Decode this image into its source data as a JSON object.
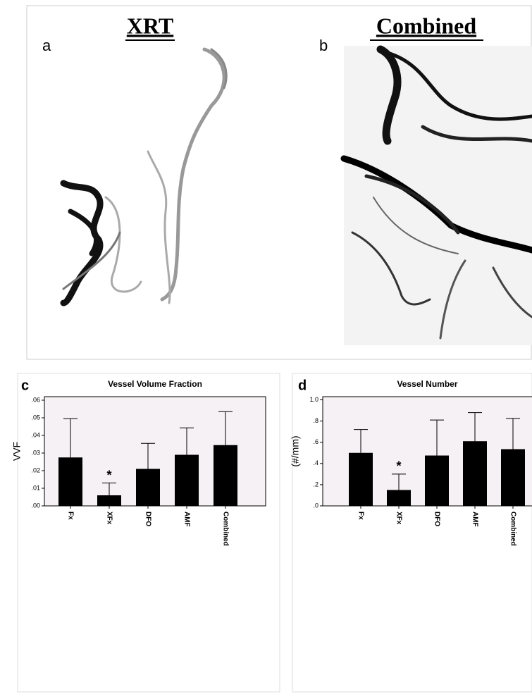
{
  "panels": [
    {
      "letter": "a",
      "title": "XRT"
    },
    {
      "letter": "b",
      "title": "Combined"
    }
  ],
  "chart_data": [
    {
      "type": "bar",
      "letter": "c",
      "title": "Vessel Volume Fraction",
      "y_label": "VVF",
      "categories": [
        "Fx",
        "XFx",
        "DFO",
        "AMF",
        "Combined"
      ],
      "series": [
        {
          "color": "#000000",
          "values": [
            0.0275,
            0.006,
            0.021,
            0.029,
            0.0345
          ],
          "errors": [
            0.022,
            0.007,
            0.0145,
            0.0153,
            0.019
          ]
        }
      ],
      "ylim": [
        0,
        0.062
      ],
      "yticks": [
        {
          "value": 0,
          "label": ".00"
        },
        {
          "value": 0.01,
          "label": ".01"
        },
        {
          "value": 0.02,
          "label": ".02"
        },
        {
          "value": 0.03,
          "label": ".03"
        },
        {
          "value": 0.04,
          "label": ".04"
        },
        {
          "value": 0.05,
          "label": ".05"
        },
        {
          "value": 0.06,
          "label": ".06"
        }
      ],
      "annotations": [
        {
          "text": "*",
          "category": "XFx"
        }
      ]
    },
    {
      "type": "bar",
      "letter": "d",
      "title": "Vessel Number",
      "y_label": "(#/mm)",
      "categories": [
        "Fx",
        "XFx",
        "DFO",
        "AMF",
        "Combined"
      ],
      "series": [
        {
          "color": "#000000",
          "values": [
            0.5,
            0.15,
            0.475,
            0.61,
            0.535
          ],
          "errors": [
            0.22,
            0.15,
            0.335,
            0.27,
            0.29
          ]
        }
      ],
      "ylim": [
        0,
        1.03
      ],
      "yticks": [
        {
          "value": 0,
          "label": ".0"
        },
        {
          "value": 0.2,
          "label": ".2"
        },
        {
          "value": 0.4,
          "label": ".4"
        },
        {
          "value": 0.6,
          "label": ".6"
        },
        {
          "value": 0.8,
          "label": ".8"
        },
        {
          "value": 1.0,
          "label": "1.0"
        }
      ],
      "annotations": [
        {
          "text": "*",
          "category": "XFx"
        }
      ]
    }
  ]
}
